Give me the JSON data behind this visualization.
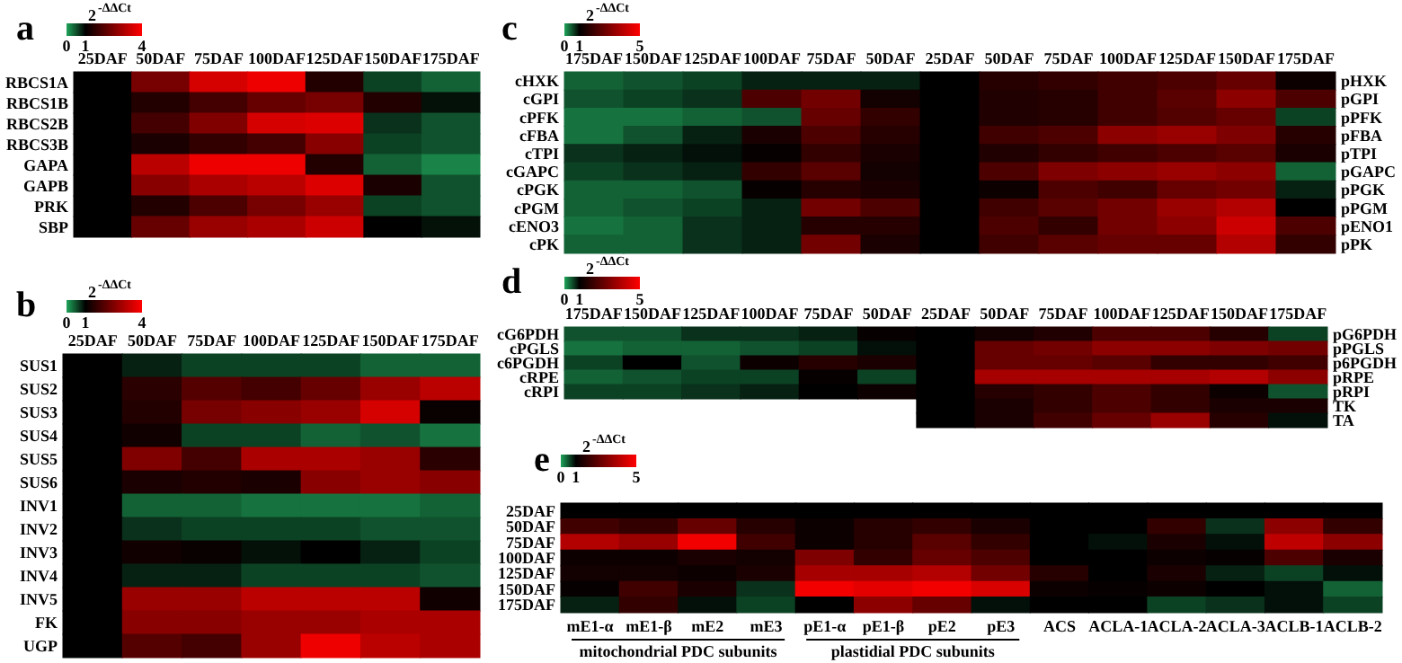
{
  "chart_data": [
    {
      "type": "heatmap",
      "title": "a",
      "clabel": "2$^{-ΔΔCt}$",
      "clim": [
        0,
        4
      ],
      "cticks": [
        0,
        1,
        4
      ],
      "categories": [
        "25DAF",
        "50DAF",
        "75DAF",
        "100DAF",
        "125DAF",
        "150DAF",
        "175DAF"
      ],
      "y_categories": [
        "RBCS1A",
        "RBCS1B",
        "RBCS2B",
        "RBCS3B",
        "GAPA",
        "GAPB",
        "PRK",
        "SBP"
      ],
      "cells": [
        [
          1,
          2.4,
          3.5,
          3.8,
          1.4,
          0.6,
          0.4
        ],
        [
          1,
          1.4,
          1.8,
          2.2,
          2.4,
          1.4,
          0.9
        ],
        [
          1,
          1.8,
          2.5,
          3.5,
          3.6,
          0.7,
          0.5
        ],
        [
          1,
          1.3,
          1.6,
          1.8,
          2.6,
          0.6,
          0.5
        ],
        [
          1,
          3.2,
          3.8,
          3.8,
          1.4,
          0.4,
          0.2
        ],
        [
          1,
          2.6,
          3,
          3.2,
          3.6,
          1.3,
          0.5
        ],
        [
          1,
          1.4,
          1.9,
          2.4,
          2.8,
          0.6,
          0.5
        ],
        [
          1,
          2.2,
          2.8,
          3,
          3.4,
          1,
          0.9
        ]
      ]
    },
    {
      "type": "heatmap",
      "title": "b",
      "clabel": "2$^{-ΔΔCt}$",
      "clim": [
        0,
        4
      ],
      "cticks": [
        0,
        1,
        4
      ],
      "categories": [
        "25DAF",
        "50DAF",
        "75DAF",
        "100DAF",
        "125DAF",
        "150DAF",
        "175DAF"
      ],
      "y_categories": [
        "SUS1",
        "SUS2",
        "SUS3",
        "SUS4",
        "SUS5",
        "SUS6",
        "INV1",
        "INV2",
        "INV3",
        "INV4",
        "INV5",
        "FK",
        "UGP"
      ],
      "cells": [
        [
          1,
          0.8,
          0.6,
          0.6,
          0.6,
          0.4,
          0.4
        ],
        [
          1,
          1.5,
          2,
          1.8,
          2.2,
          2.8,
          3.2
        ],
        [
          1,
          1.4,
          2.4,
          2.6,
          2.8,
          3.5,
          1.1
        ],
        [
          1,
          1.2,
          0.6,
          0.6,
          0.4,
          0.5,
          0.3
        ],
        [
          1,
          2.5,
          1.8,
          3,
          3,
          2.8,
          1.5
        ],
        [
          1,
          1.3,
          1.4,
          1.3,
          2.6,
          2.8,
          2.6
        ],
        [
          1,
          0.4,
          0.4,
          0.3,
          0.3,
          0.3,
          0.4
        ],
        [
          1,
          0.7,
          0.6,
          0.6,
          0.6,
          0.5,
          0.5
        ],
        [
          1,
          1.2,
          1.1,
          0.9,
          1,
          0.8,
          0.6
        ],
        [
          1,
          0.8,
          0.8,
          0.6,
          0.6,
          0.6,
          0.5
        ],
        [
          1,
          2.8,
          2.8,
          3.2,
          3.2,
          3.2,
          1.2
        ],
        [
          1,
          2.6,
          2.6,
          2.8,
          2.8,
          3,
          3
        ],
        [
          1,
          2,
          1.8,
          2.8,
          3.8,
          3.2,
          3
        ]
      ]
    },
    {
      "type": "heatmap",
      "title": "c",
      "clabel": "2$^{-ΔΔCt}$",
      "clim": [
        0,
        5
      ],
      "cticks": [
        0,
        1,
        5
      ],
      "categories": [
        "175DAF",
        "150DAF",
        "125DAF",
        "100DAF",
        "75DAF",
        "50DAF",
        "25DAF",
        "50DAF",
        "75DAF",
        "100DAF",
        "125DAF",
        "150DAF",
        "175DAF"
      ],
      "y_categories": [
        "cHXK",
        "cGPI",
        "cPFK",
        "cFBA",
        "cTPI",
        "cGAPC",
        "cPGK",
        "cPGM",
        "cENO3",
        "cPK"
      ],
      "y2_categories": [
        "pHXK",
        "pGPI",
        "pPFK",
        "pFBA",
        "pTPI",
        "pGAPC",
        "pPGK",
        "pPGM",
        "pENO1",
        "pPK"
      ],
      "cells": [
        [
          0.4,
          0.5,
          0.6,
          0.8,
          0.8,
          0.8,
          1,
          1.6,
          1.8,
          2,
          2.2,
          2.6,
          1.2
        ],
        [
          0.5,
          0.6,
          0.7,
          2.2,
          2.8,
          1.3,
          1,
          1.5,
          1.6,
          2,
          2.4,
          3.2,
          2.2
        ],
        [
          0.3,
          0.3,
          0.4,
          0.5,
          2.6,
          1.8,
          1,
          1.5,
          1.6,
          2,
          2.3,
          2.6,
          0.6
        ],
        [
          0.3,
          0.5,
          0.8,
          1.4,
          2.2,
          1.6,
          1,
          2,
          2.2,
          3.2,
          3.4,
          3,
          1.6
        ],
        [
          0.7,
          0.8,
          0.9,
          1.1,
          1.8,
          1.4,
          1,
          1.5,
          1.8,
          2,
          2.2,
          2.4,
          1.4
        ],
        [
          0.6,
          0.7,
          0.8,
          1.8,
          2.4,
          1.3,
          1,
          2.2,
          3,
          3.2,
          3.4,
          3.2,
          0.4
        ],
        [
          0.4,
          0.4,
          0.5,
          1.1,
          1.6,
          1.4,
          1,
          1.2,
          2.2,
          2,
          2.6,
          2.8,
          0.8
        ],
        [
          0.4,
          0.5,
          0.6,
          0.8,
          2.8,
          2.2,
          1,
          2,
          2.4,
          2.8,
          3.4,
          3.8,
          1
        ],
        [
          0.3,
          0.4,
          0.7,
          0.8,
          1.6,
          1.6,
          1,
          2.2,
          1.8,
          2.8,
          3.2,
          4.2,
          2.2
        ],
        [
          0.4,
          0.4,
          0.7,
          0.8,
          2.8,
          1.4,
          1,
          2,
          2.4,
          2.6,
          2.6,
          3.8,
          1.8
        ]
      ]
    },
    {
      "type": "heatmap",
      "title": "d",
      "clabel": "2$^{-ΔΔCt}$",
      "clim": [
        0,
        5
      ],
      "cticks": [
        0,
        1,
        5
      ],
      "categories": [
        "175DAF",
        "150DAF",
        "125DAF",
        "100DAF",
        "75DAF",
        "50DAF",
        "25DAF",
        "50DAF",
        "75DAF",
        "100DAF",
        "125DAF",
        "150DAF",
        "175DAF"
      ],
      "y_categories": [
        "cG6PDH",
        "cPGLS",
        "c6PGDH",
        "cRPE",
        "cRPI",
        null,
        null
      ],
      "y2_categories": [
        "pG6PDH",
        "pPGLS",
        "p6PGDH",
        "pRPE",
        "pRPI",
        "TK",
        "TA"
      ],
      "cells": [
        [
          0.5,
          0.5,
          0.7,
          0.7,
          0.8,
          1.1,
          1,
          1.3,
          1.5,
          2.2,
          2.2,
          1.6,
          0.6
        ],
        [
          0.3,
          0.4,
          0.4,
          0.5,
          0.6,
          0.9,
          1,
          2.6,
          2.8,
          3.2,
          3.2,
          3,
          2.8
        ],
        [
          0.6,
          1,
          0.5,
          1.2,
          1.6,
          1.4,
          1,
          2.6,
          2.6,
          2.4,
          1.8,
          1.8,
          2
        ],
        [
          0.4,
          0.5,
          0.6,
          0.6,
          1.1,
          0.6,
          1,
          3.6,
          3.6,
          3.6,
          3.6,
          3.8,
          3.2
        ],
        [
          0.6,
          0.6,
          0.7,
          0.8,
          1,
          1.2,
          1,
          1.6,
          1.8,
          2.2,
          1.8,
          1.2,
          0.5
        ],
        [
          null,
          null,
          null,
          null,
          null,
          null,
          1,
          1.4,
          1.8,
          2.2,
          1.8,
          1.4,
          1.4
        ],
        [
          null,
          null,
          null,
          null,
          null,
          null,
          1,
          1.4,
          2,
          2.6,
          3.4,
          1.6,
          0.9
        ]
      ]
    },
    {
      "type": "heatmap",
      "title": "e",
      "clabel": "2$^{-ΔΔCt}$",
      "clim": [
        0,
        5
      ],
      "cticks": [
        0,
        1,
        5
      ],
      "categories": [
        "mE1-α",
        "mE1-β",
        "mE2",
        "mE3",
        "pE1-α",
        "pE1-β",
        "pE2",
        "pE3",
        "ACS",
        "ACLA-1",
        "ACLA-2",
        "ACLA-3",
        "ACLB-1",
        "ACLB-2"
      ],
      "y_categories": [
        "25DAF",
        "50DAF",
        "75DAF",
        "100DAF",
        "125DAF",
        "150DAF",
        "175DAF"
      ],
      "annotations": [
        "mitochondrial PDC subunits",
        "plastidial PDC subunits"
      ],
      "cells": [
        [
          1,
          1,
          1,
          1,
          1,
          1,
          1,
          1,
          1,
          1,
          1,
          1,
          1,
          1
        ],
        [
          2,
          1.8,
          2.6,
          1.6,
          1.2,
          1.6,
          1.8,
          1.4,
          1,
          1,
          1.8,
          0.7,
          3.2,
          1.8
        ],
        [
          3.8,
          3.4,
          4.8,
          2,
          1.2,
          1.6,
          2.4,
          1.8,
          1,
          0.9,
          1.4,
          0.9,
          4,
          3.2
        ],
        [
          1.2,
          1.2,
          1.4,
          1.3,
          3,
          1.8,
          2.6,
          2.2,
          1,
          1,
          1.2,
          1.1,
          2.2,
          1.4
        ],
        [
          1.3,
          1.3,
          1.2,
          1.4,
          3.6,
          3.6,
          3.8,
          2.8,
          1.6,
          1,
          1.4,
          0.8,
          0.6,
          0.9
        ],
        [
          1.1,
          2,
          1.4,
          0.7,
          4.8,
          4.6,
          4.8,
          4.4,
          1.2,
          1.1,
          1.2,
          1,
          0.9,
          0.4
        ],
        [
          0.8,
          1.8,
          0.9,
          0.6,
          1,
          3.2,
          2.6,
          0.9,
          1,
          1,
          0.6,
          0.7,
          0.9,
          0.6
        ]
      ]
    }
  ]
}
